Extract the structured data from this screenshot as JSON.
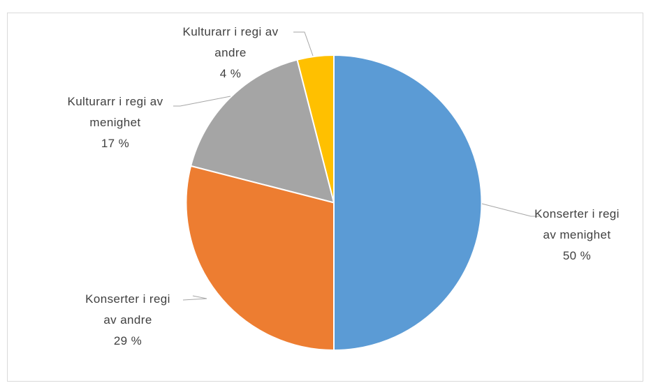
{
  "chart_data": {
    "type": "pie",
    "categories": [
      "Konserter i regi av menighet",
      "Konserter i regi av andre",
      "Kulturarr i regi av menighet",
      "Kulturarr i regi av andre"
    ],
    "values": [
      50,
      29,
      17,
      4
    ],
    "value_labels": [
      "50 %",
      "29 %",
      "17 %",
      "4 %"
    ],
    "colors": [
      "#5b9bd5",
      "#ed7d31",
      "#a5a5a5",
      "#ffc000"
    ]
  }
}
